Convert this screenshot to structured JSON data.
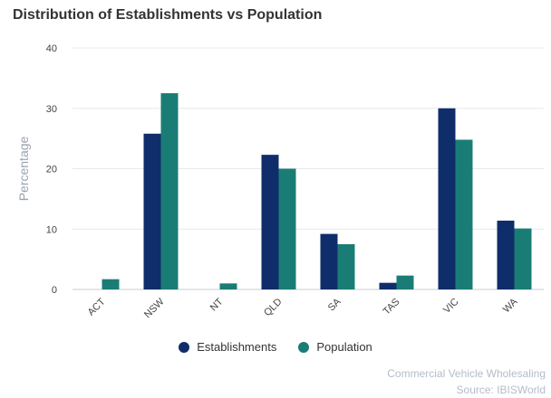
{
  "chart_data": {
    "type": "bar",
    "title": "Distribution of Establishments vs Population",
    "ylabel": "Percentage",
    "xlabel": "",
    "ylim": [
      0,
      40
    ],
    "yticks": [
      0,
      10,
      20,
      30,
      40
    ],
    "grid": true,
    "legend_position": "bottom",
    "categories": [
      "ACT",
      "NSW",
      "NT",
      "QLD",
      "SA",
      "TAS",
      "VIC",
      "WA"
    ],
    "series": [
      {
        "name": "Establishments",
        "color": "#0f2d6b",
        "values": [
          0,
          25.8,
          0,
          22.3,
          9.2,
          1.1,
          30.0,
          11.4
        ]
      },
      {
        "name": "Population",
        "color": "#1a7d75",
        "values": [
          1.7,
          32.5,
          1.0,
          20.0,
          7.5,
          2.3,
          24.8,
          10.1
        ]
      }
    ]
  },
  "source": {
    "line1": "Commercial Vehicle Wholesaling",
    "line2": "Source: IBISWorld"
  }
}
